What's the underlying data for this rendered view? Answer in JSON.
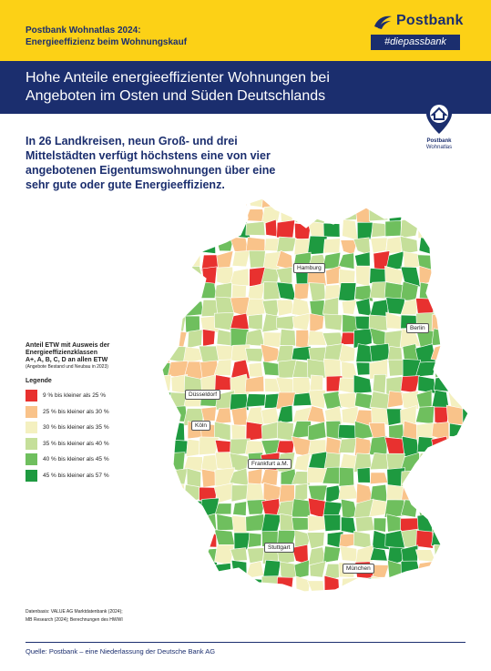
{
  "header": {
    "supertitle_line1": "Postbank Wohnatlas 2024:",
    "supertitle_line2": "Energieeffizienz beim Wohnungskauf",
    "title_line1": "Hohe Anteile energieeffizienter Wohnungen bei",
    "title_line2": "Angeboten im Osten und Süden Deutschlands"
  },
  "logo": {
    "wordmark": "Postbank",
    "hashtag": "#diepassbank",
    "badge_line1": "Postbank",
    "badge_line2": "Wohnatlas",
    "icon": "house-pin-icon"
  },
  "subtitle": {
    "line1": "In 26 Landkreisen, neun Groß- und drei",
    "line2": "Mittelstädten verfügt höchstens eine von vier",
    "line3": "angebotenen Eigentumswohnungen über eine",
    "line4": "sehr gute oder gute Energieeffizienz."
  },
  "legend": {
    "title_line1": "Anteil ETW mit Ausweis der",
    "title_line2": "Energieeffizienzklassen",
    "title_line3": "A+, A, B, C, D an allen ETW",
    "note": "(Angebote Bestand und Neubau in 2023)",
    "heading": "Legende",
    "classes": [
      {
        "label": "9 % bis kleiner als 25 %",
        "color": "#e8312f"
      },
      {
        "label": "25 % bis kleiner als 30 %",
        "color": "#f9c38a"
      },
      {
        "label": "30 % bis kleiner als 35 %",
        "color": "#f4f0c0"
      },
      {
        "label": "35 % bis kleiner als 40 %",
        "color": "#c5df9a"
      },
      {
        "label": "40 % bis kleiner als 45 %",
        "color": "#6fbf5e"
      },
      {
        "label": "45 % bis kleiner als 57 %",
        "color": "#1e9a40"
      }
    ]
  },
  "map": {
    "cities": [
      {
        "name": "Hamburg"
      },
      {
        "name": "Berlin"
      },
      {
        "name": "Düsseldorf"
      },
      {
        "name": "Köln"
      },
      {
        "name": "Frankfurt a.M."
      },
      {
        "name": "Stuttgart"
      },
      {
        "name": "München"
      }
    ]
  },
  "sources": {
    "line1": "Datenbasis: VALUE AG Marktdatenbank (2024);",
    "line2": "MB Research (2024); Berechnungen des HWWI"
  },
  "footer": {
    "source": "Quelle: Postbank – eine Niederlassung der Deutsche Bank AG"
  }
}
